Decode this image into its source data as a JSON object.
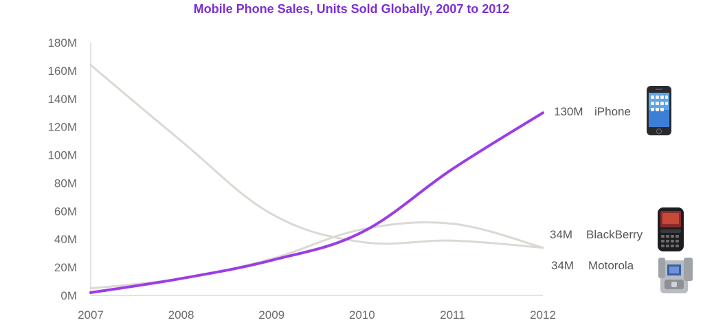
{
  "colors": {
    "accent": "#9b3de6",
    "muted": "#dcd8d3",
    "title": "#7b2fd1",
    "axis": "#e6e2de",
    "text": "#6b6b6b"
  },
  "chart_data": {
    "type": "line",
    "title": "Mobile Phone Sales, Units Sold Globally, 2007 to 2012",
    "xlabel": "",
    "ylabel": "",
    "x": [
      2007,
      2008,
      2009,
      2010,
      2011,
      2012
    ],
    "xlim": [
      2007,
      2012
    ],
    "ylim": [
      0,
      180
    ],
    "unit": "M",
    "y_ticks": [
      "0M",
      "20M",
      "40M",
      "60M",
      "80M",
      "100M",
      "120M",
      "140M",
      "160M",
      "180M"
    ],
    "x_ticks": [
      "2007",
      "2008",
      "2009",
      "2010",
      "2011",
      "2012"
    ],
    "grid": false,
    "legend": "end-of-line labels",
    "series": [
      {
        "name": "iPhone",
        "values": [
          2,
          12,
          25,
          45,
          90,
          130
        ],
        "end_value_label": "130M",
        "color": "#9b3de6",
        "icon": "iphone-icon"
      },
      {
        "name": "BlackBerry",
        "values": [
          5,
          12,
          26,
          47,
          51,
          34
        ],
        "end_value_label": "34M",
        "color": "#dcd8d3",
        "icon": "blackberry-phone-icon"
      },
      {
        "name": "Motorola",
        "values": [
          164,
          110,
          58,
          38,
          39,
          34
        ],
        "end_value_label": "34M",
        "color": "#dcd8d3",
        "icon": "motorola-flip-phone-icon"
      }
    ]
  }
}
